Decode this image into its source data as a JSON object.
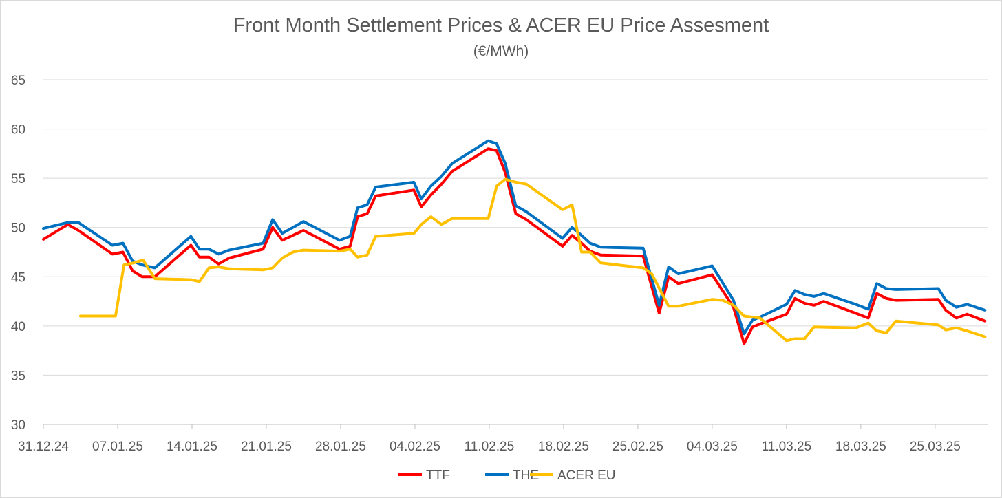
{
  "chart_data": {
    "type": "line",
    "title": "Front Month Settlement Prices & ACER EU Price Assesment",
    "subtitle": "(€/MWh)",
    "xlabel": "",
    "ylabel": "",
    "ylim": [
      30,
      65
    ],
    "yticks": [
      30,
      35,
      40,
      45,
      50,
      55,
      60,
      65
    ],
    "grid": true,
    "legend_position": "bottom",
    "x_domain": [
      0,
      89
    ],
    "xtick_labels": [
      "31.12.24",
      "07.01.25",
      "14.01.25",
      "21.01.25",
      "28.01.25",
      "04.02.25",
      "11.02.25",
      "18.02.25",
      "25.02.25",
      "04.03.25",
      "11.03.25",
      "18.03.25",
      "25.03.25"
    ],
    "xtick_days": [
      0,
      7,
      14,
      21,
      28,
      35,
      42,
      49,
      56,
      63,
      70,
      77,
      84
    ],
    "series": [
      {
        "name": "TTF",
        "color": "#ff0000",
        "points": [
          [
            0,
            48.8
          ],
          [
            2.3,
            50.3
          ],
          [
            3.3,
            49.7
          ],
          [
            6.5,
            47.3
          ],
          [
            7.5,
            47.5
          ],
          [
            8.4,
            45.6
          ],
          [
            9.3,
            45.0
          ],
          [
            10.5,
            45.0
          ],
          [
            13.9,
            48.2
          ],
          [
            14.7,
            47.0
          ],
          [
            15.6,
            47.0
          ],
          [
            16.5,
            46.3
          ],
          [
            17.5,
            46.9
          ],
          [
            20.7,
            47.8
          ],
          [
            21.6,
            50.0
          ],
          [
            22.5,
            48.7
          ],
          [
            23.5,
            49.2
          ],
          [
            24.5,
            49.7
          ],
          [
            27.9,
            47.8
          ],
          [
            28.9,
            48.1
          ],
          [
            29.6,
            51.1
          ],
          [
            30.5,
            51.4
          ],
          [
            31.3,
            53.2
          ],
          [
            34.9,
            53.8
          ],
          [
            35.6,
            52.1
          ],
          [
            36.5,
            53.3
          ],
          [
            37.5,
            54.4
          ],
          [
            38.5,
            55.7
          ],
          [
            41.9,
            58.0
          ],
          [
            42.7,
            57.8
          ],
          [
            43.5,
            55.6
          ],
          [
            44.5,
            51.4
          ],
          [
            45.5,
            50.8
          ],
          [
            48.9,
            48.1
          ],
          [
            49.8,
            49.2
          ],
          [
            50.7,
            48.4
          ],
          [
            51.5,
            47.6
          ],
          [
            52.5,
            47.2
          ],
          [
            56.5,
            47.1
          ],
          [
            58.0,
            41.3
          ],
          [
            58.9,
            45.0
          ],
          [
            59.8,
            44.3
          ],
          [
            63.0,
            45.2
          ],
          [
            65.0,
            41.9
          ],
          [
            66.0,
            38.2
          ],
          [
            66.8,
            39.9
          ],
          [
            67.5,
            40.2
          ],
          [
            70.0,
            41.2
          ],
          [
            70.8,
            42.8
          ],
          [
            71.7,
            42.3
          ],
          [
            72.6,
            42.1
          ],
          [
            73.5,
            42.5
          ],
          [
            76.5,
            41.3
          ],
          [
            77.7,
            40.8
          ],
          [
            78.5,
            43.3
          ],
          [
            79.4,
            42.8
          ],
          [
            80.3,
            42.6
          ],
          [
            84.3,
            42.7
          ],
          [
            85.0,
            41.6
          ],
          [
            86.0,
            40.8
          ],
          [
            87.0,
            41.2
          ],
          [
            88.7,
            40.5
          ]
        ]
      },
      {
        "name": "THE",
        "color": "#0070c0",
        "points": [
          [
            0,
            49.9
          ],
          [
            2.3,
            50.5
          ],
          [
            3.3,
            50.5
          ],
          [
            6.5,
            48.2
          ],
          [
            7.5,
            48.4
          ],
          [
            8.4,
            46.6
          ],
          [
            9.3,
            46.2
          ],
          [
            10.5,
            45.9
          ],
          [
            13.9,
            49.1
          ],
          [
            14.7,
            47.8
          ],
          [
            15.6,
            47.8
          ],
          [
            16.5,
            47.3
          ],
          [
            17.5,
            47.7
          ],
          [
            20.7,
            48.4
          ],
          [
            21.6,
            50.8
          ],
          [
            22.5,
            49.4
          ],
          [
            23.5,
            50.0
          ],
          [
            24.5,
            50.6
          ],
          [
            27.9,
            48.7
          ],
          [
            28.9,
            49.1
          ],
          [
            29.6,
            52.0
          ],
          [
            30.5,
            52.3
          ],
          [
            31.3,
            54.1
          ],
          [
            34.9,
            54.6
          ],
          [
            35.6,
            52.9
          ],
          [
            36.5,
            54.2
          ],
          [
            37.5,
            55.2
          ],
          [
            38.5,
            56.5
          ],
          [
            41.9,
            58.8
          ],
          [
            42.7,
            58.5
          ],
          [
            43.5,
            56.5
          ],
          [
            44.5,
            52.2
          ],
          [
            45.5,
            51.6
          ],
          [
            48.9,
            48.9
          ],
          [
            49.8,
            50.0
          ],
          [
            50.7,
            49.2
          ],
          [
            51.5,
            48.4
          ],
          [
            52.5,
            48.0
          ],
          [
            56.5,
            47.9
          ],
          [
            58.0,
            42.1
          ],
          [
            58.9,
            46.0
          ],
          [
            59.8,
            45.3
          ],
          [
            63.0,
            46.1
          ],
          [
            65.0,
            42.6
          ],
          [
            66.0,
            39.2
          ],
          [
            66.8,
            40.6
          ],
          [
            67.5,
            40.9
          ],
          [
            70.0,
            42.2
          ],
          [
            70.8,
            43.6
          ],
          [
            71.7,
            43.2
          ],
          [
            72.6,
            43.0
          ],
          [
            73.5,
            43.3
          ],
          [
            76.5,
            42.2
          ],
          [
            77.7,
            41.7
          ],
          [
            78.5,
            44.3
          ],
          [
            79.4,
            43.8
          ],
          [
            80.3,
            43.7
          ],
          [
            84.3,
            43.8
          ],
          [
            85.0,
            42.6
          ],
          [
            86.0,
            41.9
          ],
          [
            87.0,
            42.2
          ],
          [
            88.7,
            41.6
          ]
        ]
      },
      {
        "name": "ACER EU",
        "color": "#ffc000",
        "points": [
          [
            3.5,
            41.0
          ],
          [
            6.8,
            41.0
          ],
          [
            7.6,
            46.2
          ],
          [
            8.5,
            46.4
          ],
          [
            9.4,
            46.7
          ],
          [
            10.5,
            44.8
          ],
          [
            13.9,
            44.7
          ],
          [
            14.7,
            44.5
          ],
          [
            15.6,
            45.9
          ],
          [
            16.5,
            46.0
          ],
          [
            17.5,
            45.8
          ],
          [
            20.7,
            45.7
          ],
          [
            21.6,
            45.9
          ],
          [
            22.5,
            46.9
          ],
          [
            23.5,
            47.5
          ],
          [
            24.5,
            47.7
          ],
          [
            27.9,
            47.6
          ],
          [
            28.9,
            47.8
          ],
          [
            29.6,
            47.0
          ],
          [
            30.5,
            47.2
          ],
          [
            31.3,
            49.1
          ],
          [
            34.9,
            49.4
          ],
          [
            35.6,
            50.3
          ],
          [
            36.5,
            51.1
          ],
          [
            37.5,
            50.3
          ],
          [
            38.5,
            50.9
          ],
          [
            41.9,
            50.9
          ],
          [
            42.7,
            54.2
          ],
          [
            43.5,
            54.9
          ],
          [
            44.5,
            54.6
          ],
          [
            45.5,
            54.4
          ],
          [
            48.9,
            51.8
          ],
          [
            49.8,
            52.3
          ],
          [
            50.7,
            47.5
          ],
          [
            51.5,
            47.5
          ],
          [
            52.5,
            46.4
          ],
          [
            56.5,
            45.9
          ],
          [
            57.3,
            45.3
          ],
          [
            58.9,
            42.0
          ],
          [
            59.8,
            42.0
          ],
          [
            63.0,
            42.7
          ],
          [
            64.0,
            42.6
          ],
          [
            65.0,
            42.1
          ],
          [
            66.0,
            41.0
          ],
          [
            67.5,
            40.8
          ],
          [
            70.0,
            38.5
          ],
          [
            70.8,
            38.7
          ],
          [
            71.7,
            38.7
          ],
          [
            72.6,
            39.9
          ],
          [
            76.5,
            39.8
          ],
          [
            77.7,
            40.3
          ],
          [
            78.5,
            39.5
          ],
          [
            79.4,
            39.3
          ],
          [
            80.3,
            40.5
          ],
          [
            84.3,
            40.1
          ],
          [
            85.0,
            39.6
          ],
          [
            86.0,
            39.8
          ],
          [
            87.0,
            39.5
          ],
          [
            88.7,
            38.9
          ]
        ]
      }
    ]
  }
}
